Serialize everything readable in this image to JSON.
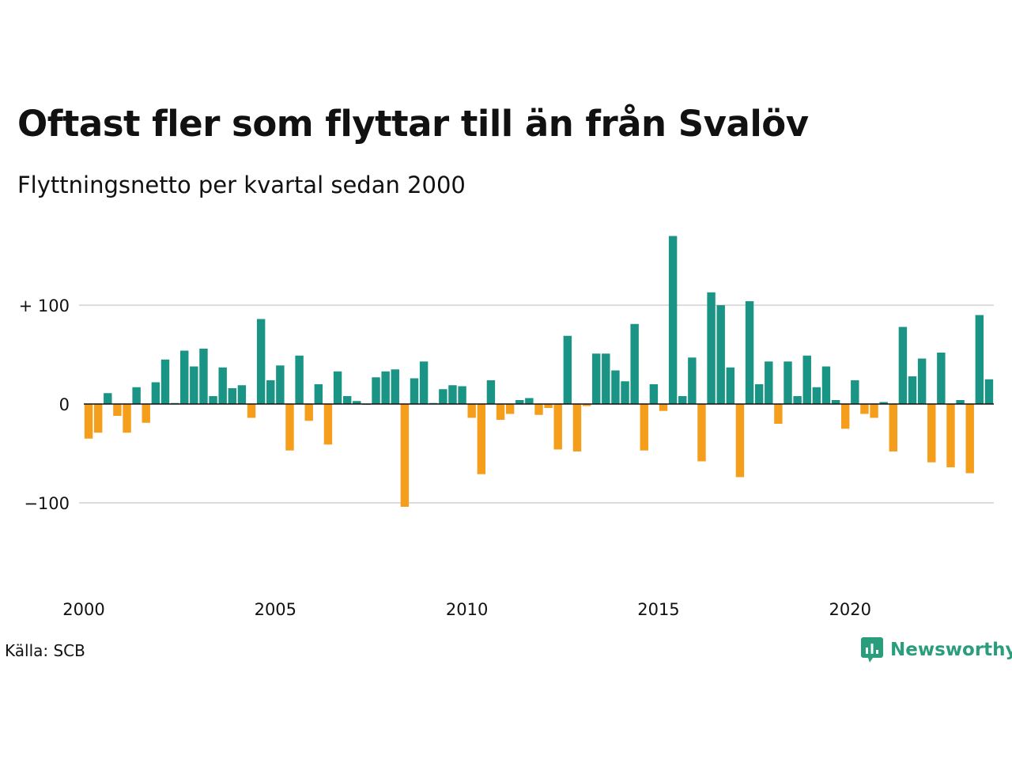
{
  "chart_data": {
    "type": "bar",
    "title": "Oftast fler som flyttar till än från Svalöv",
    "subtitle": "Flyttningsnetto per kvartal sedan 2000",
    "xlabel": "",
    "ylabel": "",
    "x_start": "2000 Q1",
    "period": "quarter",
    "values": [
      -35,
      -29,
      11,
      -12,
      -29,
      17,
      -19,
      22,
      45,
      1,
      54,
      38,
      56,
      8,
      37,
      16,
      19,
      -14,
      86,
      24,
      39,
      -47,
      49,
      -17,
      20,
      -41,
      33,
      8,
      3,
      0,
      27,
      33,
      35,
      -104,
      26,
      43,
      1,
      15,
      19,
      18,
      -14,
      -71,
      24,
      -16,
      -10,
      4,
      6,
      -11,
      -4,
      -46,
      69,
      -48,
      -2,
      51,
      51,
      34,
      23,
      81,
      -47,
      20,
      -7,
      170,
      8,
      47,
      -58,
      113,
      100,
      37,
      -74,
      104,
      20,
      43,
      -20,
      43,
      8,
      49,
      17,
      38,
      4,
      -25,
      24,
      -10,
      -14,
      2,
      -48,
      78,
      28,
      46,
      -59,
      52,
      -64,
      4,
      -70,
      90,
      25
    ],
    "ylim": [
      -190,
      170
    ],
    "yticks": [
      100,
      0,
      -100
    ],
    "ytick_labels": [
      "+ 100",
      "0",
      "−100"
    ],
    "xticks": [
      2000,
      2005,
      2010,
      2015,
      2020
    ],
    "xtick_labels": [
      "2000",
      "2005",
      "2010",
      "2015",
      "2020"
    ],
    "grid": true,
    "colors": {
      "positive": "#1a9484",
      "negative": "#f59e1b",
      "grid": "#dddddd",
      "baseline": "#111111"
    }
  },
  "footer": {
    "source": "Källa: SCB",
    "brand": "Newsworthy",
    "brand_icon": "newsworthy-logo-icon",
    "brand_color": "#2a9d7c"
  }
}
